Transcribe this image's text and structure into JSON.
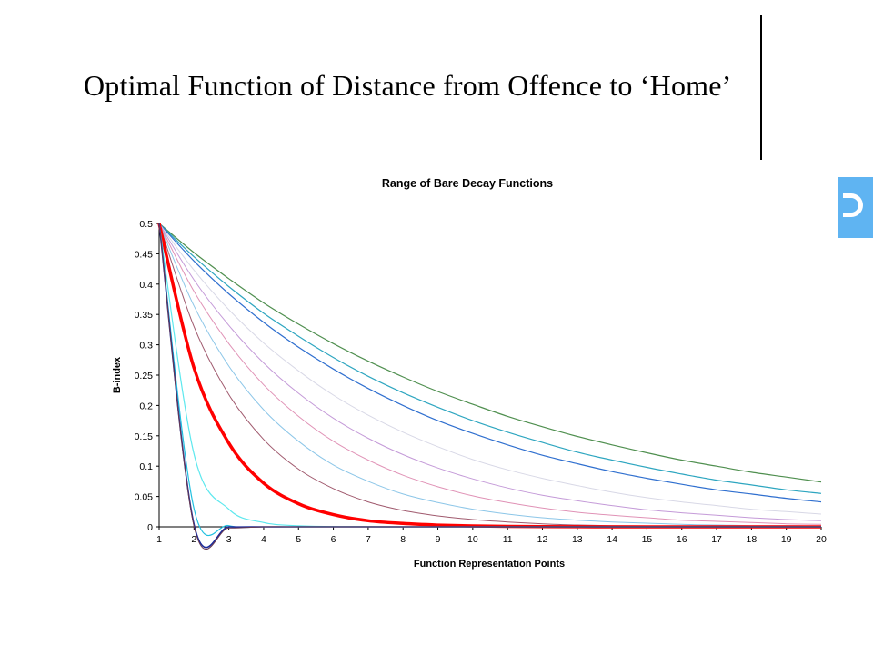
{
  "slide": {
    "title": "Optimal Function of Distance from Offence to ‘Home’",
    "accent_color": "#5fb4f2"
  },
  "chart_data": {
    "type": "line",
    "title": "Range of Bare Decay Functions",
    "xlabel": "Function Representation Points",
    "ylabel": "B-index",
    "x": [
      1,
      2,
      3,
      4,
      5,
      6,
      7,
      8,
      9,
      10,
      11,
      12,
      13,
      14,
      15,
      16,
      17,
      18,
      19,
      20
    ],
    "xlim": [
      1,
      20
    ],
    "ylim": [
      0,
      0.5
    ],
    "y_ticks": [
      "0",
      "0.05",
      "0.1",
      "0.15",
      "0.2",
      "0.25",
      "0.3",
      "0.35",
      "0.4",
      "0.45",
      "0.5"
    ],
    "x_ticks": [
      "1",
      "2",
      "3",
      "4",
      "5",
      "6",
      "7",
      "8",
      "9",
      "10",
      "11",
      "12",
      "13",
      "14",
      "15",
      "16",
      "17",
      "18",
      "19",
      "20"
    ],
    "grid": false,
    "legend": "none",
    "series": [
      {
        "color": "#4f8f4f",
        "width": 1.2,
        "values": [
          0.5,
          0.452,
          0.409,
          0.369,
          0.334,
          0.302,
          0.273,
          0.247,
          0.223,
          0.202,
          0.182,
          0.165,
          0.149,
          0.135,
          0.122,
          0.11,
          0.1,
          0.09,
          0.082,
          0.074
        ]
      },
      {
        "color": "#2ea6c0",
        "width": 1.2,
        "values": [
          0.5,
          0.445,
          0.396,
          0.352,
          0.314,
          0.279,
          0.248,
          0.221,
          0.197,
          0.175,
          0.156,
          0.139,
          0.123,
          0.11,
          0.098,
          0.087,
          0.077,
          0.069,
          0.061,
          0.055
        ]
      },
      {
        "color": "#2f6fcf",
        "width": 1.2,
        "values": [
          0.5,
          0.438,
          0.384,
          0.337,
          0.296,
          0.26,
          0.228,
          0.2,
          0.175,
          0.154,
          0.135,
          0.118,
          0.104,
          0.091,
          0.08,
          0.07,
          0.061,
          0.054,
          0.047,
          0.041
        ]
      },
      {
        "color": "#d8d8e6",
        "width": 1.0,
        "values": [
          0.5,
          0.423,
          0.358,
          0.303,
          0.257,
          0.217,
          0.184,
          0.156,
          0.132,
          0.111,
          0.094,
          0.08,
          0.068,
          0.057,
          0.048,
          0.041,
          0.035,
          0.029,
          0.025,
          0.021
        ]
      },
      {
        "color": "#c49ad8",
        "width": 1.0,
        "values": [
          0.5,
          0.407,
          0.332,
          0.27,
          0.22,
          0.179,
          0.146,
          0.119,
          0.097,
          0.079,
          0.064,
          0.052,
          0.043,
          0.035,
          0.028,
          0.023,
          0.019,
          0.015,
          0.012,
          0.01
        ]
      },
      {
        "color": "#e092b6",
        "width": 1.0,
        "values": [
          0.5,
          0.388,
          0.302,
          0.234,
          0.182,
          0.141,
          0.11,
          0.085,
          0.066,
          0.051,
          0.04,
          0.031,
          0.024,
          0.019,
          0.015,
          0.011,
          0.009,
          0.007,
          0.005,
          0.004
        ]
      },
      {
        "color": "#8cc6e8",
        "width": 1.0,
        "values": [
          0.5,
          0.364,
          0.265,
          0.193,
          0.141,
          0.102,
          0.075,
          0.054,
          0.04,
          0.029,
          0.021,
          0.015,
          0.011,
          0.008,
          0.006,
          0.004,
          0.003,
          0.002,
          0.002,
          0.001
        ]
      },
      {
        "color": "#a05a6e",
        "width": 1.0,
        "values": [
          0.5,
          0.33,
          0.218,
          0.144,
          0.095,
          0.063,
          0.041,
          0.027,
          0.018,
          0.012,
          0.008,
          0.005,
          0.003,
          0.002,
          0.0015,
          0.001,
          0.0007,
          0.0004,
          0.0003,
          0.0002
        ]
      },
      {
        "color": "#ff0000",
        "width": 3.5,
        "values": [
          0.5,
          0.262,
          0.138,
          0.072,
          0.038,
          0.02,
          0.01,
          0.0055,
          0.0029,
          0.0015,
          0.0008,
          0.0004,
          0.0002,
          0,
          0,
          0,
          0,
          0,
          0,
          0
        ]
      },
      {
        "color": "#5de8ee",
        "width": 1.2,
        "values": [
          0.5,
          0.12,
          0.029,
          0.007,
          0.0017,
          0.0004,
          0.0001,
          0,
          0,
          0,
          0,
          0,
          0,
          0,
          0,
          0,
          0,
          0,
          0,
          0
        ]
      },
      {
        "color": "#20c0e0",
        "width": 1.2,
        "values": [
          0.5,
          0.03,
          0.002,
          0,
          0,
          0,
          0,
          0,
          0,
          0,
          0,
          0,
          0,
          0,
          0,
          0,
          0,
          0,
          0,
          0
        ]
      },
      {
        "color": "#1a2a9a",
        "width": 1.6,
        "values": [
          0.5,
          0.004,
          0,
          0,
          0,
          0,
          0,
          0,
          0,
          0,
          0,
          0,
          0,
          0,
          0,
          0,
          0,
          0,
          0,
          0
        ]
      },
      {
        "color": "#6a3a50",
        "width": 1.0,
        "values": [
          0.5,
          0.001,
          -0.002,
          0,
          0,
          0,
          0,
          0,
          0,
          0,
          0,
          0,
          0,
          0,
          0,
          0,
          0,
          0,
          0,
          0
        ]
      }
    ]
  }
}
